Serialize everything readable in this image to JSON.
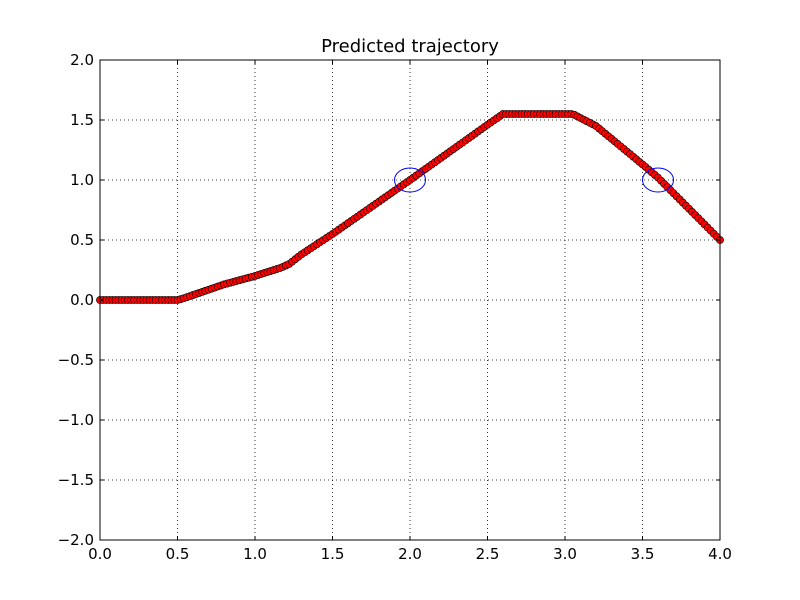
{
  "chart_data": {
    "type": "scatter",
    "title": "Predicted trajectory",
    "xlabel": "",
    "ylabel": "",
    "xlim": [
      0.0,
      4.0
    ],
    "ylim": [
      -2.0,
      2.0
    ],
    "grid": true,
    "grid_style": "dotted",
    "x_ticks": [
      0.0,
      0.5,
      1.0,
      1.5,
      2.0,
      2.5,
      3.0,
      3.5,
      4.0
    ],
    "x_tick_labels": [
      "0.0",
      "0.5",
      "1.0",
      "1.5",
      "2.0",
      "2.5",
      "3.0",
      "3.5",
      "4.0"
    ],
    "y_ticks": [
      -2.0,
      -1.5,
      -1.0,
      -0.5,
      0.0,
      0.5,
      1.0,
      1.5,
      2.0
    ],
    "y_tick_labels": [
      "−2.0",
      "−1.5",
      "−1.0",
      "−0.5",
      "0.0",
      "0.5",
      "1.0",
      "1.5",
      "2.0"
    ],
    "series": [
      {
        "style": "line-with-markers",
        "line_color": "#000000",
        "marker": "circle",
        "marker_color": "#ff0000",
        "x_step": 0.02,
        "x": [
          0.0,
          0.5,
          0.53,
          0.8,
          1.0,
          1.17,
          1.22,
          1.3,
          1.5,
          2.0,
          2.5,
          2.6,
          3.05,
          3.2,
          3.5,
          3.6,
          4.0
        ],
        "y": [
          0.0,
          0.0,
          0.01,
          0.13,
          0.2,
          0.27,
          0.3,
          0.38,
          0.55,
          1.0,
          1.46,
          1.55,
          1.55,
          1.45,
          1.13,
          1.02,
          0.5
        ]
      }
    ],
    "annotations": [
      {
        "shape": "ellipse",
        "color": "#0000ff",
        "x": 2.0,
        "y": 1.0,
        "rx": 0.1,
        "ry": 0.1
      },
      {
        "shape": "ellipse",
        "color": "#0000ff",
        "x": 3.6,
        "y": 1.0,
        "rx": 0.1,
        "ry": 0.1
      }
    ]
  }
}
